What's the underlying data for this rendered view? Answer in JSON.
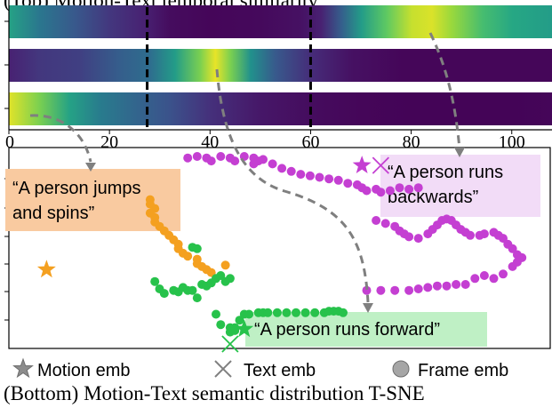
{
  "chart_data": [
    {
      "type": "heatmap",
      "title": "(Top) Motion-Text temporal similarity",
      "rows": 3,
      "xlim": [
        0,
        108
      ],
      "xticks": [
        0,
        20,
        40,
        60,
        80,
        100
      ],
      "xtick_labels": [
        "0",
        "20",
        "40",
        "60",
        "80",
        "100"
      ],
      "colormap": "viridis",
      "rows_profile": [
        {
          "anchors": [
            [
              0,
              0.58
            ],
            [
              6,
              0.4
            ],
            [
              13,
              0.28
            ],
            [
              20,
              0.18
            ],
            [
              27,
              0.12
            ],
            [
              32,
              0.04
            ],
            [
              40,
              0.02
            ],
            [
              50,
              0.03
            ],
            [
              58,
              0.06
            ],
            [
              62,
              0.12
            ],
            [
              66,
              0.3
            ],
            [
              70,
              0.55
            ],
            [
              75,
              0.75
            ],
            [
              80,
              0.92
            ],
            [
              84,
              0.95
            ],
            [
              88,
              0.85
            ],
            [
              94,
              0.7
            ],
            [
              100,
              0.6
            ],
            [
              108,
              0.55
            ]
          ]
        },
        {
          "anchors": [
            [
              0,
              0.12
            ],
            [
              6,
              0.18
            ],
            [
              14,
              0.2
            ],
            [
              22,
              0.3
            ],
            [
              28,
              0.36
            ],
            [
              33,
              0.55
            ],
            [
              38,
              0.8
            ],
            [
              41,
              0.97
            ],
            [
              44,
              0.8
            ],
            [
              48,
              0.5
            ],
            [
              53,
              0.28
            ],
            [
              60,
              0.15
            ],
            [
              68,
              0.06
            ],
            [
              78,
              0.02
            ],
            [
              88,
              0.02
            ],
            [
              100,
              0.02
            ],
            [
              108,
              0.02
            ]
          ]
        },
        {
          "anchors": [
            [
              0,
              0.96
            ],
            [
              6,
              0.8
            ],
            [
              12,
              0.58
            ],
            [
              18,
              0.42
            ],
            [
              25,
              0.33
            ],
            [
              32,
              0.25
            ],
            [
              40,
              0.16
            ],
            [
              50,
              0.08
            ],
            [
              60,
              0.04
            ],
            [
              70,
              0.02
            ],
            [
              80,
              0.01
            ],
            [
              90,
              0.01
            ],
            [
              100,
              0.01
            ],
            [
              108,
              0.02
            ]
          ]
        }
      ],
      "dashed_markers": [
        27.5,
        60
      ]
    },
    {
      "type": "scatter",
      "title": "(Bottom) Motion-Text semantic distribution T-SNE",
      "xlim": [
        0,
        100
      ],
      "ylim": [
        0,
        100
      ],
      "series": [
        {
          "name": "A person jumps and spins",
          "color": "#f4a020",
          "frame_points": [
            [
              25,
              75
            ],
            [
              25,
              72
            ],
            [
              26,
              69
            ],
            [
              25,
              66
            ],
            [
              26,
              63
            ],
            [
              26,
              60
            ],
            [
              27,
              57
            ],
            [
              28,
              54
            ],
            [
              29,
              51
            ],
            [
              30,
              48
            ],
            [
              31,
              45
            ],
            [
              31,
              42
            ],
            [
              32,
              39
            ],
            [
              33,
              37
            ],
            [
              35,
              35
            ],
            [
              35,
              32
            ],
            [
              36,
              30
            ],
            [
              37,
              28
            ],
            [
              38,
              26
            ],
            [
              41,
              31
            ]
          ],
          "motion_emb": [
            3,
            28
          ],
          "text_emb": null
        },
        {
          "name": "A person runs backwards",
          "color": "#c43fd2",
          "frame_points": [
            [
              33,
              103
            ],
            [
              35,
              104
            ],
            [
              37,
              103
            ],
            [
              38,
              101
            ],
            [
              40,
              104
            ],
            [
              42,
              103
            ],
            [
              43,
              101
            ],
            [
              45,
              104
            ],
            [
              47,
              103
            ],
            [
              48,
              101
            ],
            [
              47,
              99
            ],
            [
              49,
              102
            ],
            [
              51,
              99
            ],
            [
              53,
              96
            ],
            [
              55,
              94
            ],
            [
              57,
              92
            ],
            [
              59,
              91
            ],
            [
              61,
              90
            ],
            [
              63,
              89
            ],
            [
              65,
              88
            ],
            [
              67,
              86
            ],
            [
              69,
              85
            ],
            [
              70,
              83
            ],
            [
              71,
              81
            ],
            [
              73,
              82
            ],
            [
              74,
              80
            ],
            [
              76,
              81
            ],
            [
              78,
              83
            ],
            [
              80,
              82
            ],
            [
              82,
              83
            ],
            [
              73,
              61
            ],
            [
              75,
              59
            ],
            [
              77,
              57
            ],
            [
              78,
              54
            ],
            [
              79,
              52
            ],
            [
              80,
              50
            ],
            [
              82,
              49
            ],
            [
              84,
              52
            ],
            [
              85,
              55
            ],
            [
              86,
              58
            ],
            [
              87,
              61
            ],
            [
              88,
              62
            ],
            [
              89,
              61
            ],
            [
              90,
              58
            ],
            [
              91,
              55
            ],
            [
              92,
              53
            ],
            [
              93,
              51
            ],
            [
              95,
              51
            ],
            [
              96,
              52
            ],
            [
              98,
              53
            ],
            [
              99,
              51
            ],
            [
              100,
              49
            ],
            [
              101,
              45
            ],
            [
              102,
              42
            ],
            [
              103,
              38
            ],
            [
              104,
              36
            ],
            [
              103,
              33
            ],
            [
              102,
              30
            ],
            [
              100,
              25
            ],
            [
              98,
              22
            ],
            [
              96,
              24
            ],
            [
              94,
              22
            ],
            [
              92,
              18
            ],
            [
              90,
              18
            ],
            [
              88,
              17
            ],
            [
              86,
              17
            ],
            [
              84,
              16
            ],
            [
              82,
              15
            ],
            [
              80,
              14
            ],
            [
              77,
              14
            ],
            [
              74,
              14
            ],
            [
              71,
              14
            ]
          ],
          "motion_emb": [
            70,
            98
          ],
          "text_emb": [
            74,
            98
          ]
        },
        {
          "name": "A person runs forward",
          "color": "#27c24b",
          "frame_points": [
            [
              34,
              43
            ],
            [
              35,
              42
            ],
            [
              26,
              20
            ],
            [
              27,
              15
            ],
            [
              28,
              12
            ],
            [
              30,
              14
            ],
            [
              31,
              13
            ],
            [
              32,
              16
            ],
            [
              33,
              14
            ],
            [
              34,
              14
            ],
            [
              35,
              9
            ],
            [
              36,
              18
            ],
            [
              37,
              17
            ],
            [
              38,
              19
            ],
            [
              39,
              22
            ],
            [
              40,
              24
            ],
            [
              42,
              22
            ],
            [
              41,
              20
            ],
            [
              39,
              -2
            ],
            [
              40,
              -9
            ],
            [
              42,
              -11
            ],
            [
              42,
              -14
            ],
            [
              43,
              -13
            ],
            [
              43,
              -11
            ],
            [
              44,
              -6
            ],
            [
              45,
              -2
            ],
            [
              46,
              -2
            ],
            [
              48,
              -1
            ],
            [
              49,
              -1
            ],
            [
              50,
              -1
            ],
            [
              52,
              -1
            ],
            [
              54,
              -1
            ],
            [
              56,
              -1
            ],
            [
              58,
              -1
            ],
            [
              60,
              -1
            ],
            [
              62,
              -1
            ],
            [
              63,
              0
            ],
            [
              64,
              0
            ],
            [
              65,
              0
            ],
            [
              66,
              -1
            ]
          ],
          "motion_emb": [
            45,
            -12
          ],
          "text_emb": [
            42,
            -22
          ]
        }
      ],
      "annotations": [
        {
          "text": "“A person jumps and spins”",
          "color": "#f9caa0"
        },
        {
          "text": "“A person runs backwards”",
          "color": "#f2dcf7"
        },
        {
          "text": "“A person runs forward”",
          "color": "#bff0c5"
        }
      ],
      "legend": {
        "position": "bottom",
        "items": [
          {
            "label": "Motion emb",
            "marker": "star"
          },
          {
            "label": "Text emb",
            "marker": "x"
          },
          {
            "label": "Frame emb",
            "marker": "circle"
          }
        ]
      }
    }
  ],
  "captions": {
    "top": "(Top) Motion-Text temporal similarity",
    "bottom": "(Bottom) Motion-Text semantic distribution T-SNE"
  },
  "quotes": {
    "jumps_line1": "“A person jumps",
    "jumps_line2": "and spins”",
    "backwards_line1": "“A person runs",
    "backwards_line2": "backwards”",
    "forward": "“A person runs forward”"
  },
  "legend_labels": {
    "motion": "Motion emb",
    "text": "Text emb",
    "frame": "Frame emb"
  }
}
